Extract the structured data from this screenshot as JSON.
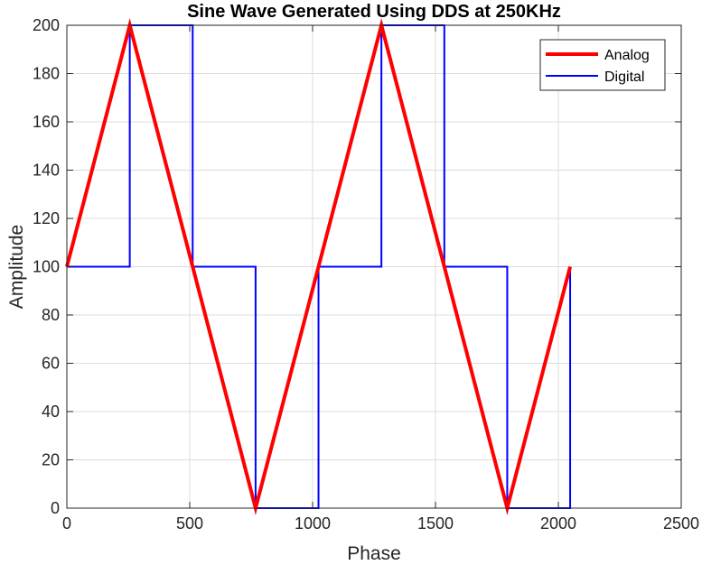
{
  "chart_data": {
    "type": "line",
    "title": "Sine Wave Generated Using DDS at 250KHz",
    "xlabel": "Phase",
    "ylabel": "Amplitude",
    "xlim": [
      0,
      2500
    ],
    "ylim": [
      0,
      200
    ],
    "xticks": [
      0,
      500,
      1000,
      1500,
      2000,
      2500
    ],
    "yticks": [
      0,
      20,
      40,
      60,
      80,
      100,
      120,
      140,
      160,
      180,
      200
    ],
    "grid": true,
    "legend_location": "top-right",
    "series": [
      {
        "name": "Analog",
        "color": "#ff0000",
        "style": "solid-thick",
        "x": [
          0,
          256,
          512,
          768,
          1024,
          1280,
          1536,
          1792,
          2048
        ],
        "y": [
          100,
          200,
          100,
          0,
          100,
          200,
          100,
          0,
          100
        ]
      },
      {
        "name": "Digital",
        "color": "#0000ff",
        "style": "stairs",
        "x": [
          0,
          256,
          256,
          512,
          512,
          768,
          768,
          1024,
          1024,
          1280,
          1280,
          1536,
          1536,
          1792,
          1792,
          2048,
          2048
        ],
        "y": [
          100,
          100,
          200,
          200,
          100,
          100,
          0,
          0,
          100,
          100,
          200,
          200,
          100,
          100,
          0,
          0,
          100
        ]
      }
    ]
  }
}
